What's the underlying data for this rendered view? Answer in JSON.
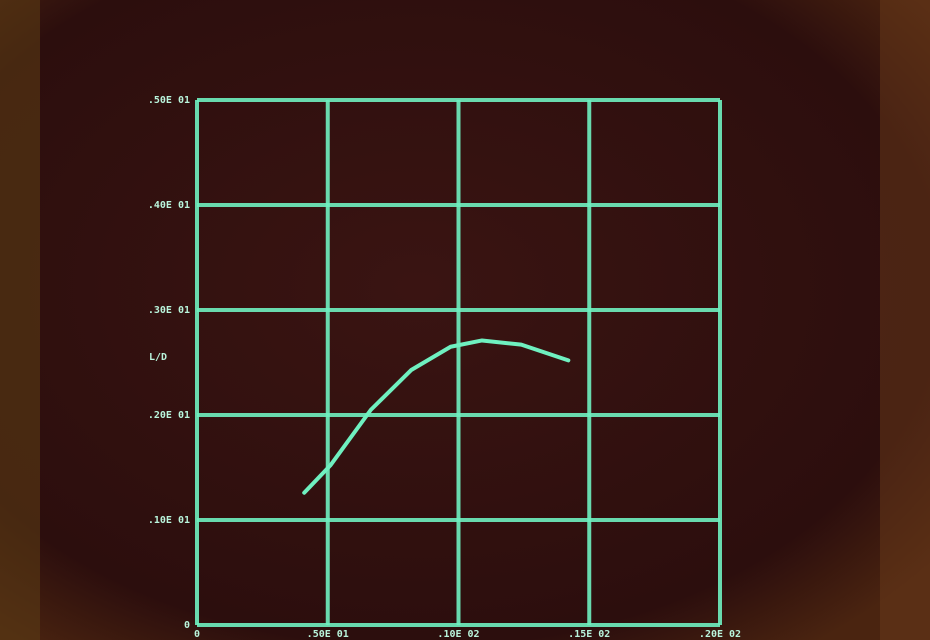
{
  "chart_data": {
    "type": "line",
    "y_label": "L/D",
    "x": [
      4.1,
      5.1,
      6.65,
      8.2,
      9.7,
      10.9,
      12.4,
      14.2
    ],
    "series": [
      {
        "name": "L/D",
        "color": "#6ff0c0",
        "values": [
          1.26,
          1.52,
          2.05,
          2.43,
          2.65,
          2.71,
          2.67,
          2.52
        ]
      }
    ],
    "xlim": [
      0,
      20
    ],
    "xticks": [
      0,
      {
        "value": 5,
        "label": ".50E 01"
      },
      {
        "value": 10,
        "label": ".10E 02"
      },
      {
        "value": 15,
        "label": ".15E 02"
      },
      {
        "value": 20,
        "label": ".20E 02"
      }
    ],
    "ylim": [
      0,
      5
    ],
    "yticks": [
      0,
      {
        "value": 1,
        "label": ".10E 01"
      },
      {
        "value": 2,
        "label": ".20E 01"
      },
      {
        "value": 3,
        "label": ".30E 01"
      },
      {
        "value": 4,
        "label": ".40E 01"
      },
      {
        "value": 5,
        "label": ".50E 01"
      }
    ],
    "grid": true
  }
}
